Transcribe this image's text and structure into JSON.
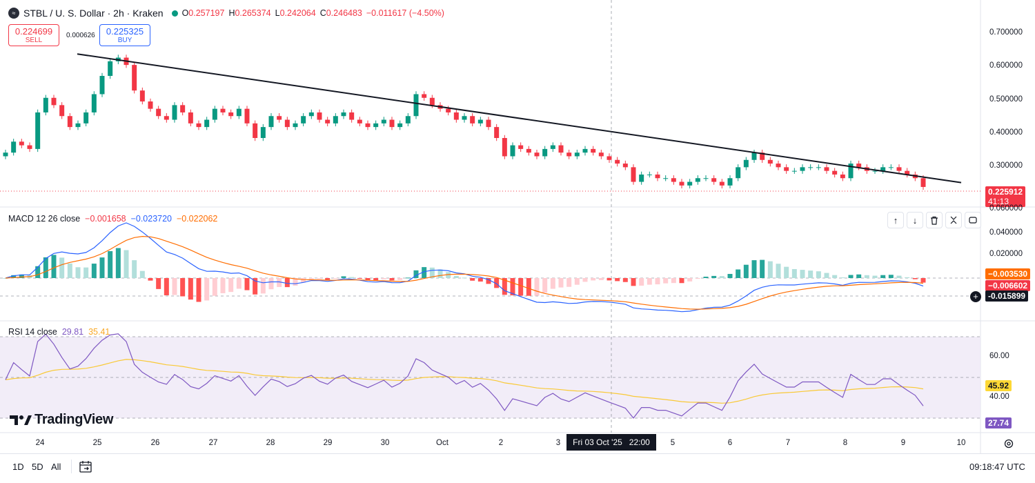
{
  "header": {
    "title": "STBL / U. S. Dollar · 2h · Kraken",
    "open_label": "O",
    "open": "0.257197",
    "high_label": "H",
    "high": "0.265374",
    "low_label": "L",
    "low": "0.242064",
    "close_label": "C",
    "close": "0.246483",
    "change": "−0.011617 (−4.50%)"
  },
  "trade": {
    "sell_price": "0.224699",
    "sell_label": "SELL",
    "spread": "0.000626",
    "buy_price": "0.225325",
    "buy_label": "BUY"
  },
  "price_axis": {
    "ticks": [
      "0.700000",
      "0.600000",
      "0.500000",
      "0.400000",
      "0.300000"
    ],
    "last_price": "0.225912",
    "countdown": "41:13"
  },
  "macd": {
    "label": "MACD 12 26 close",
    "hist": "−0.001658",
    "macd": "−0.023720",
    "signal": "−0.022062",
    "axis_ticks": [
      "0.060000",
      "0.040000",
      "0.020000"
    ],
    "tag_signal": "−0.003530",
    "tag_hist": "−0.006602",
    "tag_cursor": "-0.015899"
  },
  "rsi": {
    "label": "RSI 14 close",
    "value": "29.81",
    "ma": "35.41",
    "axis_ticks": [
      "60.00",
      "40.00"
    ],
    "tag_ma": "45.92",
    "tag_value": "27.74"
  },
  "time_axis": {
    "ticks": [
      "24",
      "25",
      "26",
      "27",
      "28",
      "29",
      "30",
      "Oct",
      "2",
      "3",
      "5",
      "6",
      "7",
      "8",
      "9",
      "10"
    ],
    "cursor_label": "Fri 03 Oct '25   22:00"
  },
  "footer": {
    "range_1d": "1D",
    "range_5d": "5D",
    "range_all": "All",
    "clock": "09:18:47 UTC"
  },
  "logo": {
    "text": "TradingView"
  },
  "colors": {
    "up": "#089981",
    "down": "#f23645",
    "macd_line": "#2962ff",
    "signal_line": "#ff6d00",
    "rsi_line": "#7e57c2",
    "rsi_ma": "#fdd835",
    "rsi_band": "#ede7f6",
    "accent": "#2962ff"
  },
  "chart_data": {
    "type": "candlestick",
    "timeframe": "2h",
    "y_range": [
      0.21,
      0.72
    ],
    "trendline": [
      [
        0.61,
        "24 Sep 21:00"
      ],
      [
        0.258,
        "10 Oct 00:00"
      ]
    ],
    "candles_close_approx": [
      0.34,
      0.37,
      0.36,
      0.35,
      0.45,
      0.49,
      0.47,
      0.44,
      0.41,
      0.42,
      0.45,
      0.5,
      0.55,
      0.59,
      0.6,
      0.58,
      0.51,
      0.48,
      0.46,
      0.44,
      0.43,
      0.47,
      0.45,
      0.42,
      0.41,
      0.43,
      0.46,
      0.45,
      0.44,
      0.46,
      0.42,
      0.38,
      0.41,
      0.44,
      0.43,
      0.41,
      0.42,
      0.44,
      0.45,
      0.43,
      0.42,
      0.44,
      0.45,
      0.43,
      0.42,
      0.41,
      0.42,
      0.43,
      0.41,
      0.42,
      0.44,
      0.5,
      0.49,
      0.47,
      0.46,
      0.45,
      0.43,
      0.44,
      0.42,
      0.43,
      0.41,
      0.38,
      0.33,
      0.36,
      0.35,
      0.34,
      0.33,
      0.35,
      0.36,
      0.34,
      0.33,
      0.34,
      0.35,
      0.34,
      0.33,
      0.32,
      0.31,
      0.3,
      0.26,
      0.28,
      0.28,
      0.27,
      0.27,
      0.26,
      0.25,
      0.26,
      0.27,
      0.27,
      0.26,
      0.25,
      0.27,
      0.3,
      0.32,
      0.34,
      0.32,
      0.31,
      0.3,
      0.29,
      0.29,
      0.3,
      0.3,
      0.3,
      0.29,
      0.28,
      0.27,
      0.31,
      0.3,
      0.29,
      0.29,
      0.3,
      0.3,
      0.29,
      0.28,
      0.27,
      0.246
    ]
  }
}
